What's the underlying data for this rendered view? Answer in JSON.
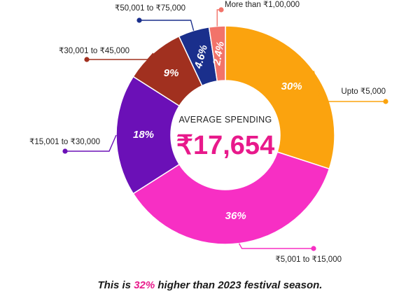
{
  "chart_data": {
    "type": "pie",
    "variant": "donut",
    "center_caption": "AVERAGE SPENDING",
    "center_value": "₹17,654",
    "slices": [
      {
        "label": "Upto ₹5,000",
        "value": 30,
        "value_label": "30%",
        "color": "#fba30e"
      },
      {
        "label": "₹5,001 to ₹15,000",
        "value": 36,
        "value_label": "36%",
        "color": "#f72fc4"
      },
      {
        "label": "₹15,001 to ₹30,000",
        "value": 18,
        "value_label": "18%",
        "color": "#6b10b7"
      },
      {
        "label": "₹30,001 to ₹45,000",
        "value": 9,
        "value_label": "9%",
        "color": "#a1301f"
      },
      {
        "label": "₹50,001 to ₹75,000",
        "value": 4.6,
        "value_label": "4.6%",
        "color": "#1a2f8c"
      },
      {
        "label": "More than ₹1,00,000",
        "value": 2.4,
        "value_label": "2.4%",
        "color": "#f2736a"
      }
    ]
  },
  "footer": {
    "prefix": "This is ",
    "highlight": "32%",
    "suffix": " higher than 2023 festival season."
  }
}
